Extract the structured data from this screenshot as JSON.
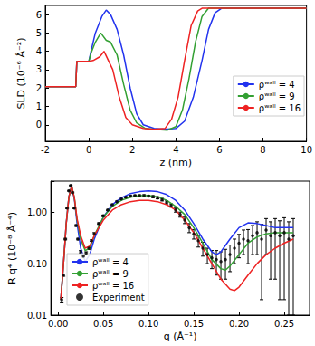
{
  "chart_data": [
    {
      "type": "line",
      "x_label": "z (nm)",
      "y_label": "SLD (10⁻⁶ Å⁻²)",
      "xlim": [
        -2,
        10
      ],
      "xticks": [
        -2,
        0,
        2,
        4,
        6,
        8,
        10
      ],
      "ylim": [
        -0.9,
        6.5
      ],
      "yticks": [
        0,
        1,
        2,
        3,
        4,
        5,
        6
      ],
      "grid": false,
      "legend": "right",
      "series": [
        {
          "name": "ρʷᵃˡˡ = 4",
          "color": "#2233ee",
          "x": [
            -2,
            -0.6,
            -0.55,
            0,
            0.1,
            0.3,
            0.6,
            0.8,
            1.0,
            1.3,
            1.6,
            1.9,
            2.2,
            2.5,
            3.0,
            3.5,
            4.0,
            4.4,
            4.8,
            5.2,
            5.5,
            5.8,
            6.1,
            10
          ],
          "values": [
            2.07,
            2.07,
            3.45,
            3.45,
            4.0,
            5.0,
            5.9,
            6.25,
            6.0,
            5.2,
            3.8,
            2.0,
            0.6,
            0.0,
            -0.2,
            -0.25,
            -0.2,
            0.2,
            1.5,
            3.5,
            5.2,
            6.1,
            6.35,
            6.35
          ]
        },
        {
          "name": "ρʷᵃˡˡ = 9",
          "color": "#33a033",
          "x": [
            -2,
            -0.6,
            -0.55,
            0,
            0.1,
            0.3,
            0.55,
            0.8,
            1.0,
            1.3,
            1.6,
            1.9,
            2.2,
            2.6,
            3.0,
            3.6,
            4.0,
            4.3,
            4.6,
            4.9,
            5.2,
            5.5,
            10
          ],
          "values": [
            2.07,
            2.07,
            3.45,
            3.45,
            3.9,
            4.5,
            5.0,
            4.6,
            4.5,
            3.8,
            2.2,
            0.8,
            0.1,
            -0.2,
            -0.25,
            -0.3,
            -0.1,
            0.8,
            2.5,
            4.5,
            5.9,
            6.35,
            6.35
          ]
        },
        {
          "name": "ρʷᵃˡˡ = 16",
          "color": "#ee2222",
          "x": [
            -2,
            -0.6,
            -0.55,
            0,
            0.2,
            0.5,
            0.7,
            0.9,
            1.1,
            1.4,
            1.7,
            2.0,
            2.5,
            3.0,
            3.5,
            3.8,
            4.1,
            4.4,
            4.7,
            5.0,
            5.2,
            10
          ],
          "values": [
            2.07,
            2.07,
            3.45,
            3.45,
            3.5,
            3.7,
            4.0,
            3.5,
            3.0,
            1.5,
            0.4,
            0.0,
            -0.2,
            -0.25,
            -0.2,
            0.3,
            1.5,
            3.5,
            5.4,
            6.2,
            6.35,
            6.35
          ]
        }
      ]
    },
    {
      "type": "line",
      "x_label": "q (Å⁻¹)",
      "y_label": "R q⁴ (10⁻⁸ Å⁻⁴)",
      "log": "y",
      "xlim": [
        -0.008,
        0.278
      ],
      "xticks": [
        {
          "value": 0,
          "label": "0.00"
        },
        0.05,
        {
          "value": 0.1,
          "label": "0.10"
        },
        0.15,
        {
          "value": 0.2,
          "label": "0.20"
        },
        0.25
      ],
      "ylim": [
        0.01,
        4
      ],
      "yticks": [
        0.01,
        {
          "value": 0.1,
          "label": "0.10"
        },
        {
          "value": 1,
          "label": "1.00"
        }
      ],
      "grid": false,
      "legend": "lower left",
      "series": [
        {
          "name": "ρʷᵃˡˡ = 4",
          "color": "#2233ee",
          "x": [
            0.003,
            0.006,
            0.009,
            0.012,
            0.015,
            0.018,
            0.021,
            0.025,
            0.03,
            0.035,
            0.04,
            0.05,
            0.06,
            0.07,
            0.08,
            0.09,
            0.1,
            0.11,
            0.12,
            0.13,
            0.14,
            0.15,
            0.16,
            0.17,
            0.175,
            0.18,
            0.19,
            0.2,
            0.21,
            0.22,
            0.23,
            0.24,
            0.25,
            0.26
          ],
          "values": [
            0.02,
            0.1,
            0.6,
            2.0,
            3.2,
            1.8,
            0.6,
            0.2,
            0.11,
            0.15,
            0.3,
            0.8,
            1.4,
            1.9,
            2.3,
            2.5,
            2.6,
            2.5,
            2.2,
            1.7,
            1.1,
            0.6,
            0.3,
            0.17,
            0.15,
            0.17,
            0.3,
            0.5,
            0.62,
            0.6,
            0.55,
            0.5,
            0.5,
            0.5
          ]
        },
        {
          "name": "ρʷᵃˡˡ = 9",
          "color": "#33a033",
          "x": [
            0.003,
            0.006,
            0.009,
            0.012,
            0.015,
            0.018,
            0.021,
            0.025,
            0.03,
            0.035,
            0.04,
            0.05,
            0.06,
            0.07,
            0.08,
            0.09,
            0.1,
            0.11,
            0.12,
            0.13,
            0.14,
            0.15,
            0.16,
            0.17,
            0.18,
            0.185,
            0.19,
            0.2,
            0.21,
            0.22,
            0.23,
            0.24,
            0.25,
            0.26
          ],
          "values": [
            0.02,
            0.1,
            0.6,
            2.0,
            3.2,
            1.9,
            0.7,
            0.3,
            0.18,
            0.2,
            0.35,
            0.8,
            1.3,
            1.7,
            1.95,
            2.1,
            2.1,
            2.0,
            1.7,
            1.3,
            0.9,
            0.5,
            0.25,
            0.12,
            0.08,
            0.075,
            0.09,
            0.15,
            0.25,
            0.33,
            0.38,
            0.4,
            0.4,
            0.4
          ]
        },
        {
          "name": "ρʷᵃˡˡ = 16",
          "color": "#ee2222",
          "x": [
            0.003,
            0.006,
            0.009,
            0.012,
            0.015,
            0.018,
            0.021,
            0.025,
            0.03,
            0.035,
            0.04,
            0.05,
            0.06,
            0.07,
            0.08,
            0.09,
            0.1,
            0.11,
            0.12,
            0.13,
            0.14,
            0.15,
            0.16,
            0.17,
            0.18,
            0.19,
            0.195,
            0.2,
            0.21,
            0.22,
            0.23,
            0.24,
            0.25,
            0.26
          ],
          "values": [
            0.02,
            0.1,
            0.6,
            2.0,
            3.2,
            1.9,
            0.75,
            0.35,
            0.2,
            0.22,
            0.35,
            0.7,
            1.1,
            1.4,
            1.6,
            1.7,
            1.7,
            1.6,
            1.4,
            1.1,
            0.7,
            0.4,
            0.2,
            0.1,
            0.05,
            0.032,
            0.03,
            0.035,
            0.06,
            0.1,
            0.15,
            0.2,
            0.25,
            0.3
          ]
        },
        {
          "name": "Experiment",
          "type": "scatter",
          "color": "#000000",
          "marker": "circle",
          "x": [
            0.004,
            0.006,
            0.008,
            0.01,
            0.012,
            0.014,
            0.016,
            0.018,
            0.02,
            0.022,
            0.025,
            0.028,
            0.031,
            0.034,
            0.037,
            0.04,
            0.045,
            0.05,
            0.055,
            0.06,
            0.065,
            0.07,
            0.075,
            0.08,
            0.085,
            0.09,
            0.095,
            0.1,
            0.105,
            0.11,
            0.115,
            0.12,
            0.125,
            0.13,
            0.135,
            0.14,
            0.145,
            0.15,
            0.155,
            0.16,
            0.165,
            0.17,
            0.175,
            0.18,
            0.185,
            0.19,
            0.195,
            0.2,
            0.205,
            0.21,
            0.215,
            0.22,
            0.225,
            0.23,
            0.235,
            0.24,
            0.245,
            0.25,
            0.255,
            0.26
          ],
          "values": [
            0.02,
            0.06,
            0.3,
            1.2,
            2.6,
            3.3,
            2.4,
            1.2,
            0.55,
            0.3,
            0.17,
            0.14,
            0.16,
            0.2,
            0.28,
            0.38,
            0.6,
            0.85,
            1.1,
            1.4,
            1.6,
            1.8,
            1.95,
            2.05,
            2.1,
            2.1,
            2.1,
            2.05,
            2.0,
            1.9,
            1.75,
            1.55,
            1.35,
            1.1,
            0.9,
            0.7,
            0.5,
            0.38,
            0.28,
            0.2,
            0.15,
            0.13,
            0.12,
            0.11,
            0.12,
            0.15,
            0.2,
            0.25,
            0.3,
            0.28,
            0.35,
            0.4,
            0.3,
            0.45,
            0.35,
            0.4,
            0.35,
            0.4,
            0.3,
            0.35
          ],
          "errors": [
            0.002,
            0.003,
            0.01,
            0.03,
            0.05,
            0.06,
            0.05,
            0.03,
            0.02,
            0.01,
            0.01,
            0.01,
            0.01,
            0.01,
            0.01,
            0.02,
            0.02,
            0.03,
            0.03,
            0.04,
            0.04,
            0.05,
            0.05,
            0.06,
            0.06,
            0.07,
            0.08,
            0.08,
            0.09,
            0.09,
            0.1,
            0.1,
            0.1,
            0.1,
            0.1,
            0.1,
            0.1,
            0.08,
            0.07,
            0.06,
            0.05,
            0.05,
            0.06,
            0.06,
            0.07,
            0.08,
            0.1,
            0.12,
            0.15,
            0.18,
            0.2,
            0.25,
            0.28,
            0.3,
            0.3,
            0.35,
            0.33,
            0.38,
            0.35,
            0.4
          ]
        }
      ]
    }
  ]
}
